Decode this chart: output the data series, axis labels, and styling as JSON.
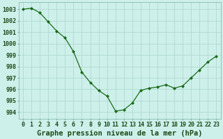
{
  "x": [
    0,
    1,
    2,
    3,
    4,
    5,
    6,
    7,
    8,
    9,
    10,
    11,
    12,
    13,
    14,
    15,
    16,
    17,
    18,
    19,
    20,
    21,
    22,
    23
  ],
  "y": [
    1003.0,
    1003.1,
    1002.7,
    1001.9,
    1001.1,
    1000.5,
    999.3,
    997.5,
    996.6,
    995.9,
    995.4,
    994.1,
    994.2,
    994.8,
    995.9,
    996.1,
    996.2,
    996.4,
    996.1,
    996.3,
    997.0,
    997.7,
    998.4,
    998.9
  ],
  "line_color": "#1a6b1a",
  "marker_color": "#1a6b1a",
  "bg_color": "#cef0ea",
  "grid_color": "#aad4cc",
  "xlabel": "Graphe pression niveau de la mer (hPa)",
  "ylabel_ticks": [
    994,
    995,
    996,
    997,
    998,
    999,
    1000,
    1001,
    1002,
    1003
  ],
  "ylim": [
    993.4,
    1003.6
  ],
  "xlim": [
    -0.5,
    23.5
  ],
  "xlabel_fontsize": 7.5,
  "tick_fontsize": 6.0,
  "label_color": "#1a4a1a",
  "spine_color": "#7ab0a8"
}
